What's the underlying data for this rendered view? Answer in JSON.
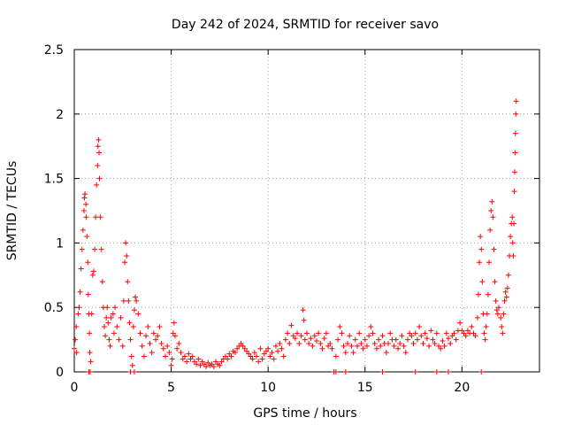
{
  "chart_data": {
    "type": "scatter",
    "title": "Day 242 of 2024, SRMTID for receiver savo",
    "xlabel": "GPS time / hours",
    "ylabel": "SRMTID / TECUs",
    "xlim": [
      0,
      24
    ],
    "ylim": [
      0,
      2.5
    ],
    "xticks": [
      0,
      5,
      10,
      15,
      20
    ],
    "yticks": [
      0,
      0.5,
      1,
      1.5,
      2,
      2.5
    ],
    "xtick_labels": [
      "0",
      "5",
      "10",
      "15",
      "20"
    ],
    "ytick_labels": [
      "0",
      "0.5",
      "1",
      "1.5",
      "2",
      "2.5"
    ],
    "grid": true,
    "marker": "plus",
    "color": "#ff0000",
    "series": [
      {
        "name": "SRMTID",
        "points": [
          [
            0.0,
            0.18
          ],
          [
            0.05,
            0.25
          ],
          [
            0.1,
            0.35
          ],
          [
            0.12,
            0.15
          ],
          [
            0.2,
            0.45
          ],
          [
            0.25,
            0.5
          ],
          [
            0.3,
            0.62
          ],
          [
            0.35,
            0.8
          ],
          [
            0.4,
            0.95
          ],
          [
            0.45,
            1.1
          ],
          [
            0.5,
            1.25
          ],
          [
            0.52,
            1.35
          ],
          [
            0.55,
            1.38
          ],
          [
            0.6,
            1.3
          ],
          [
            0.62,
            1.2
          ],
          [
            0.65,
            1.05
          ],
          [
            0.7,
            0.85
          ],
          [
            0.72,
            0.6
          ],
          [
            0.75,
            0.45
          ],
          [
            0.78,
            0.3
          ],
          [
            0.8,
            0.15
          ],
          [
            0.82,
            0.0
          ],
          [
            0.85,
            0.08
          ],
          [
            0.9,
            0.45
          ],
          [
            0.95,
            0.75
          ],
          [
            1.0,
            0.78
          ],
          [
            1.05,
            0.95
          ],
          [
            1.1,
            1.2
          ],
          [
            1.15,
            1.45
          ],
          [
            1.2,
            1.6
          ],
          [
            1.22,
            1.75
          ],
          [
            1.25,
            1.8
          ],
          [
            1.28,
            1.7
          ],
          [
            1.3,
            1.5
          ],
          [
            1.35,
            1.2
          ],
          [
            1.4,
            0.95
          ],
          [
            1.45,
            0.7
          ],
          [
            1.5,
            0.5
          ],
          [
            1.55,
            0.35
          ],
          [
            1.6,
            0.28
          ],
          [
            1.65,
            0.42
          ],
          [
            1.7,
            0.5
          ],
          [
            1.75,
            0.38
          ],
          [
            1.8,
            0.25
          ],
          [
            1.85,
            0.2
          ],
          [
            1.9,
            0.42
          ],
          [
            2.0,
            0.45
          ],
          [
            2.05,
            0.3
          ],
          [
            2.1,
            0.5
          ],
          [
            2.2,
            0.35
          ],
          [
            2.3,
            0.25
          ],
          [
            2.4,
            0.42
          ],
          [
            2.5,
            0.2
          ],
          [
            2.55,
            0.55
          ],
          [
            2.6,
            0.85
          ],
          [
            2.65,
            1.0
          ],
          [
            2.7,
            0.9
          ],
          [
            2.75,
            0.7
          ],
          [
            2.8,
            0.55
          ],
          [
            2.85,
            0.38
          ],
          [
            2.9,
            0.25
          ],
          [
            2.95,
            0.12
          ],
          [
            3.0,
            0.05
          ],
          [
            3.05,
            0.35
          ],
          [
            3.1,
            0.48
          ],
          [
            3.15,
            0.58
          ],
          [
            3.2,
            0.55
          ],
          [
            3.3,
            0.45
          ],
          [
            3.4,
            0.3
          ],
          [
            3.5,
            0.2
          ],
          [
            3.6,
            0.12
          ],
          [
            3.7,
            0.28
          ],
          [
            3.8,
            0.35
          ],
          [
            3.9,
            0.22
          ],
          [
            4.0,
            0.15
          ],
          [
            4.1,
            0.3
          ],
          [
            4.2,
            0.25
          ],
          [
            4.3,
            0.28
          ],
          [
            4.4,
            0.35
          ],
          [
            4.5,
            0.22
          ],
          [
            4.6,
            0.18
          ],
          [
            4.7,
            0.12
          ],
          [
            4.8,
            0.2
          ],
          [
            4.9,
            0.15
          ],
          [
            5.0,
            0.05
          ],
          [
            5.05,
            0.1
          ],
          [
            5.1,
            0.3
          ],
          [
            5.15,
            0.38
          ],
          [
            5.2,
            0.28
          ],
          [
            5.3,
            0.18
          ],
          [
            5.4,
            0.22
          ],
          [
            5.5,
            0.15
          ],
          [
            5.6,
            0.1
          ],
          [
            5.7,
            0.12
          ],
          [
            5.8,
            0.08
          ],
          [
            5.9,
            0.14
          ],
          [
            6.0,
            0.1
          ],
          [
            6.1,
            0.12
          ],
          [
            6.2,
            0.08
          ],
          [
            6.3,
            0.06
          ],
          [
            6.4,
            0.1
          ],
          [
            6.5,
            0.05
          ],
          [
            6.6,
            0.08
          ],
          [
            6.7,
            0.06
          ],
          [
            6.8,
            0.04
          ],
          [
            6.9,
            0.07
          ],
          [
            7.0,
            0.05
          ],
          [
            7.1,
            0.06
          ],
          [
            7.2,
            0.04
          ],
          [
            7.3,
            0.08
          ],
          [
            7.4,
            0.06
          ],
          [
            7.5,
            0.05
          ],
          [
            7.6,
            0.08
          ],
          [
            7.7,
            0.1
          ],
          [
            7.8,
            0.12
          ],
          [
            7.9,
            0.1
          ],
          [
            8.0,
            0.14
          ],
          [
            8.1,
            0.12
          ],
          [
            8.2,
            0.16
          ],
          [
            8.3,
            0.15
          ],
          [
            8.4,
            0.18
          ],
          [
            8.5,
            0.2
          ],
          [
            8.6,
            0.22
          ],
          [
            8.7,
            0.2
          ],
          [
            8.8,
            0.18
          ],
          [
            8.9,
            0.16
          ],
          [
            9.0,
            0.14
          ],
          [
            9.1,
            0.12
          ],
          [
            9.2,
            0.1
          ],
          [
            9.3,
            0.15
          ],
          [
            9.4,
            0.12
          ],
          [
            9.5,
            0.08
          ],
          [
            9.6,
            0.18
          ],
          [
            9.7,
            0.1
          ],
          [
            9.8,
            0.14
          ],
          [
            9.9,
            0.16
          ],
          [
            10.0,
            0.18
          ],
          [
            10.1,
            0.12
          ],
          [
            10.2,
            0.15
          ],
          [
            10.3,
            0.1
          ],
          [
            10.4,
            0.2
          ],
          [
            10.5,
            0.16
          ],
          [
            10.6,
            0.22
          ],
          [
            10.7,
            0.18
          ],
          [
            10.8,
            0.12
          ],
          [
            10.9,
            0.25
          ],
          [
            11.0,
            0.3
          ],
          [
            11.1,
            0.22
          ],
          [
            11.2,
            0.36
          ],
          [
            11.3,
            0.28
          ],
          [
            11.4,
            0.26
          ],
          [
            11.5,
            0.3
          ],
          [
            11.6,
            0.22
          ],
          [
            11.7,
            0.28
          ],
          [
            11.8,
            0.48
          ],
          [
            11.85,
            0.4
          ],
          [
            11.9,
            0.25
          ],
          [
            12.0,
            0.3
          ],
          [
            12.1,
            0.22
          ],
          [
            12.2,
            0.26
          ],
          [
            12.3,
            0.2
          ],
          [
            12.4,
            0.28
          ],
          [
            12.5,
            0.24
          ],
          [
            12.6,
            0.3
          ],
          [
            12.7,
            0.22
          ],
          [
            12.8,
            0.18
          ],
          [
            12.9,
            0.26
          ],
          [
            13.0,
            0.3
          ],
          [
            13.1,
            0.2
          ],
          [
            13.2,
            0.22
          ],
          [
            13.3,
            0.18
          ],
          [
            13.4,
            0.0
          ],
          [
            13.5,
            0.12
          ],
          [
            13.6,
            0.25
          ],
          [
            13.7,
            0.35
          ],
          [
            13.8,
            0.3
          ],
          [
            13.9,
            0.2
          ],
          [
            14.0,
            0.15
          ],
          [
            14.1,
            0.22
          ],
          [
            14.2,
            0.28
          ],
          [
            14.3,
            0.2
          ],
          [
            14.4,
            0.15
          ],
          [
            14.5,
            0.25
          ],
          [
            14.6,
            0.2
          ],
          [
            14.7,
            0.3
          ],
          [
            14.8,
            0.22
          ],
          [
            14.9,
            0.18
          ],
          [
            15.0,
            0.25
          ],
          [
            15.1,
            0.2
          ],
          [
            15.2,
            0.28
          ],
          [
            15.3,
            0.35
          ],
          [
            15.4,
            0.3
          ],
          [
            15.5,
            0.22
          ],
          [
            15.6,
            0.18
          ],
          [
            15.7,
            0.25
          ],
          [
            15.8,
            0.2
          ],
          [
            15.9,
            0.28
          ],
          [
            16.0,
            0.22
          ],
          [
            16.1,
            0.15
          ],
          [
            16.2,
            0.22
          ],
          [
            16.3,
            0.3
          ],
          [
            16.4,
            0.25
          ],
          [
            16.5,
            0.2
          ],
          [
            16.6,
            0.25
          ],
          [
            16.7,
            0.18
          ],
          [
            16.8,
            0.22
          ],
          [
            16.9,
            0.28
          ],
          [
            17.0,
            0.2
          ],
          [
            17.1,
            0.15
          ],
          [
            17.2,
            0.25
          ],
          [
            17.3,
            0.3
          ],
          [
            17.4,
            0.28
          ],
          [
            17.5,
            0.22
          ],
          [
            17.6,
            0.3
          ],
          [
            17.7,
            0.25
          ],
          [
            17.8,
            0.35
          ],
          [
            17.9,
            0.28
          ],
          [
            18.0,
            0.22
          ],
          [
            18.1,
            0.3
          ],
          [
            18.2,
            0.26
          ],
          [
            18.3,
            0.2
          ],
          [
            18.4,
            0.32
          ],
          [
            18.5,
            0.25
          ],
          [
            18.6,
            0.22
          ],
          [
            18.7,
            0.3
          ],
          [
            18.8,
            0.2
          ],
          [
            18.9,
            0.18
          ],
          [
            19.0,
            0.24
          ],
          [
            19.1,
            0.2
          ],
          [
            19.2,
            0.3
          ],
          [
            19.3,
            0.26
          ],
          [
            19.4,
            0.22
          ],
          [
            19.5,
            0.28
          ],
          [
            19.6,
            0.3
          ],
          [
            19.7,
            0.25
          ],
          [
            19.8,
            0.32
          ],
          [
            19.9,
            0.38
          ],
          [
            20.0,
            0.32
          ],
          [
            20.1,
            0.3
          ],
          [
            20.2,
            0.28
          ],
          [
            20.3,
            0.32
          ],
          [
            20.4,
            0.3
          ],
          [
            20.5,
            0.35
          ],
          [
            20.6,
            0.3
          ],
          [
            20.7,
            0.28
          ],
          [
            20.8,
            0.42
          ],
          [
            20.85,
            0.6
          ],
          [
            20.9,
            0.85
          ],
          [
            20.95,
            1.05
          ],
          [
            21.0,
            0.95
          ],
          [
            21.05,
            0.7
          ],
          [
            21.1,
            0.45
          ],
          [
            21.15,
            0.3
          ],
          [
            21.2,
            0.25
          ],
          [
            21.25,
            0.35
          ],
          [
            21.3,
            0.45
          ],
          [
            21.35,
            0.6
          ],
          [
            21.4,
            0.85
          ],
          [
            21.45,
            1.1
          ],
          [
            21.5,
            1.25
          ],
          [
            21.55,
            1.32
          ],
          [
            21.6,
            1.2
          ],
          [
            21.65,
            0.95
          ],
          [
            21.7,
            0.7
          ],
          [
            21.75,
            0.55
          ],
          [
            21.8,
            0.48
          ],
          [
            21.85,
            0.45
          ],
          [
            21.9,
            0.5
          ],
          [
            22.0,
            0.42
          ],
          [
            22.05,
            0.35
          ],
          [
            22.1,
            0.3
          ],
          [
            22.15,
            0.45
          ],
          [
            22.2,
            0.55
          ],
          [
            22.25,
            0.62
          ],
          [
            22.3,
            0.58
          ],
          [
            22.35,
            0.65
          ],
          [
            22.4,
            0.75
          ],
          [
            22.45,
            0.9
          ],
          [
            22.5,
            1.05
          ],
          [
            22.55,
            1.15
          ],
          [
            22.6,
            1.2
          ],
          [
            22.62,
            1.0
          ],
          [
            22.65,
            0.9
          ],
          [
            22.68,
            1.15
          ],
          [
            22.7,
            1.4
          ],
          [
            22.72,
            1.55
          ],
          [
            22.74,
            1.7
          ],
          [
            22.76,
            1.85
          ],
          [
            22.78,
            2.0
          ],
          [
            22.8,
            2.1
          ],
          [
            21.0,
            0.0
          ],
          [
            19.3,
            0.0
          ],
          [
            18.7,
            0.0
          ],
          [
            17.6,
            0.0
          ],
          [
            15.9,
            0.0
          ],
          [
            14.0,
            0.0
          ],
          [
            13.5,
            0.0
          ],
          [
            3.1,
            0.0
          ],
          [
            2.9,
            0.0
          ],
          [
            0.75,
            0.0
          ]
        ]
      }
    ]
  }
}
